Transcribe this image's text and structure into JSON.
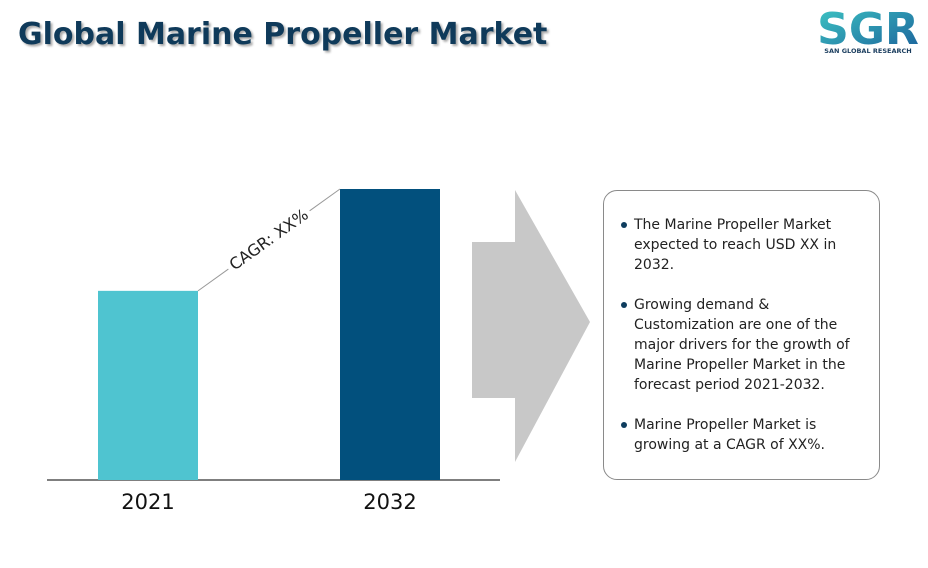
{
  "chart_data": {
    "type": "bar",
    "title": "Global Marine Propeller Market",
    "categories": [
      "2021",
      "2032"
    ],
    "values": [
      65,
      100
    ],
    "colors": [
      "#4fc4d0",
      "#02507d"
    ],
    "ylim": [
      0,
      100
    ],
    "annotation": "CAGR: XX%"
  },
  "logo": {
    "mark": "SGR",
    "name": "SAN GLOBAL RESEARCH"
  },
  "summary": [
    "The Marine Propeller Market expected to reach USD  XX in 2032.",
    "Growing demand & Customization are one of the major drivers for the growth of Marine Propeller Market in the forecast period 2021-2032.",
    "Marine Propeller Market is growing at a CAGR of XX%."
  ]
}
